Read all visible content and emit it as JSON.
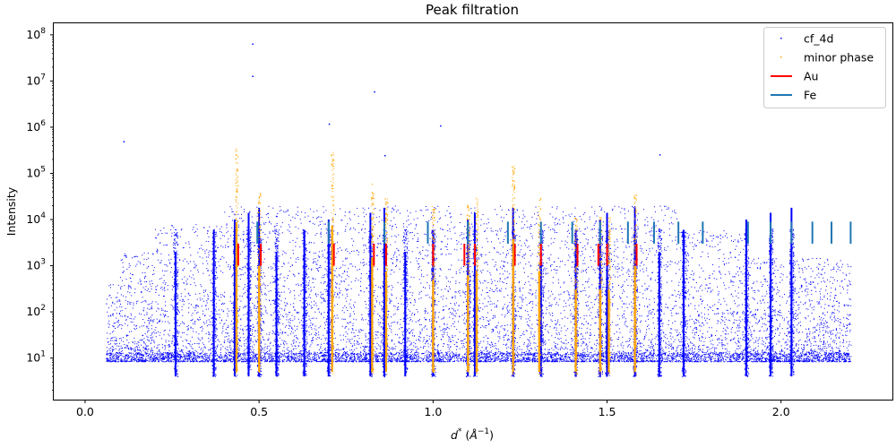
{
  "chart_data": {
    "type": "scatter",
    "title": "Peak filtration",
    "xlabel_base": "d",
    "xlabel_sup": "*",
    "xlabel_unit_open": " (",
    "xlabel_unit_base": "Å",
    "xlabel_unit_sup": "−1",
    "xlabel_unit_close": ")",
    "ylabel": "Intensity",
    "xlim": [
      -0.09,
      2.32
    ],
    "ylim_log10": [
      0.1,
      8.25
    ],
    "y_scale": "log",
    "x_ticks": [
      {
        "v": 0.0,
        "t": "0.0"
      },
      {
        "v": 0.5,
        "t": "0.5"
      },
      {
        "v": 1.0,
        "t": "1.0"
      },
      {
        "v": 1.5,
        "t": "1.5"
      },
      {
        "v": 2.0,
        "t": "2.0"
      }
    ],
    "y_ticks": [
      {
        "p": 1,
        "base": "10",
        "exp": "1"
      },
      {
        "p": 2,
        "base": "10",
        "exp": "2"
      },
      {
        "p": 3,
        "base": "10",
        "exp": "3"
      },
      {
        "p": 4,
        "base": "10",
        "exp": "4"
      },
      {
        "p": 5,
        "base": "10",
        "exp": "5"
      },
      {
        "p": 6,
        "base": "10",
        "exp": "6"
      },
      {
        "p": 7,
        "base": "10",
        "exp": "7"
      },
      {
        "p": 8,
        "base": "10",
        "exp": "8"
      }
    ],
    "legend_position": "top-right",
    "legend": [
      {
        "label": "cf_4d",
        "kind": "dot",
        "color": "#0000ff"
      },
      {
        "label": "minor phase",
        "kind": "dot",
        "color": "#ffa500"
      },
      {
        "label": "Au",
        "kind": "line",
        "color": "#ff0000"
      },
      {
        "label": "Fe",
        "kind": "line",
        "color": "#1f77b4"
      }
    ],
    "series": [
      {
        "name": "cf_4d",
        "color": "#0000ff",
        "marker": "pixel",
        "x_range": [
          0.06,
          2.2
        ],
        "baseline_intensity": 10,
        "strong_peaks": [
          0.26,
          0.37,
          0.43,
          0.47,
          0.5,
          0.55,
          0.63,
          0.7,
          0.82,
          0.86,
          0.92,
          1.0,
          1.1,
          1.12,
          1.23,
          1.31,
          1.41,
          1.48,
          1.5,
          1.58,
          1.65,
          1.72,
          1.9,
          1.97,
          2.03
        ],
        "outliers": [
          {
            "x": 0.48,
            "y": 65000000
          },
          {
            "x": 0.48,
            "y": 13000000
          },
          {
            "x": 0.83,
            "y": 6000000
          },
          {
            "x": 0.7,
            "y": 1200000
          },
          {
            "x": 1.02,
            "y": 1100000
          },
          {
            "x": 0.86,
            "y": 250000
          },
          {
            "x": 0.11,
            "y": 500000
          },
          {
            "x": 1.65,
            "y": 260000
          }
        ]
      },
      {
        "name": "minor phase",
        "color": "#ffa500",
        "marker": "pixel",
        "peaks": [
          {
            "x": 0.435,
            "y": 350000
          },
          {
            "x": 0.5,
            "y": 40000
          },
          {
            "x": 0.71,
            "y": 300000
          },
          {
            "x": 0.825,
            "y": 60000
          },
          {
            "x": 0.865,
            "y": 30000
          },
          {
            "x": 1.0,
            "y": 20000
          },
          {
            "x": 1.1,
            "y": 25000
          },
          {
            "x": 1.125,
            "y": 30000
          },
          {
            "x": 1.23,
            "y": 150000
          },
          {
            "x": 1.305,
            "y": 30000
          },
          {
            "x": 1.41,
            "y": 12000
          },
          {
            "x": 1.48,
            "y": 12000
          },
          {
            "x": 1.505,
            "y": 12000
          },
          {
            "x": 1.58,
            "y": 40000
          }
        ]
      },
      {
        "name": "Au",
        "color": "#ff0000",
        "type": "vlines",
        "y_range": [
          1000,
          3000
        ],
        "x": [
          0.44,
          0.505,
          0.715,
          0.83,
          0.865,
          1.0,
          1.09,
          1.12,
          1.235,
          1.31,
          1.415,
          1.475,
          1.5,
          1.585
        ]
      },
      {
        "name": "Fe",
        "color": "#1f77b4",
        "type": "vlines",
        "y_range": [
          3000,
          9000
        ],
        "x": [
          0.495,
          0.7,
          0.86,
          0.985,
          1.1,
          1.215,
          1.31,
          1.4,
          1.48,
          1.56,
          1.635,
          1.705,
          1.775,
          1.905,
          1.97,
          2.03,
          2.09,
          2.145,
          2.2
        ]
      }
    ]
  }
}
